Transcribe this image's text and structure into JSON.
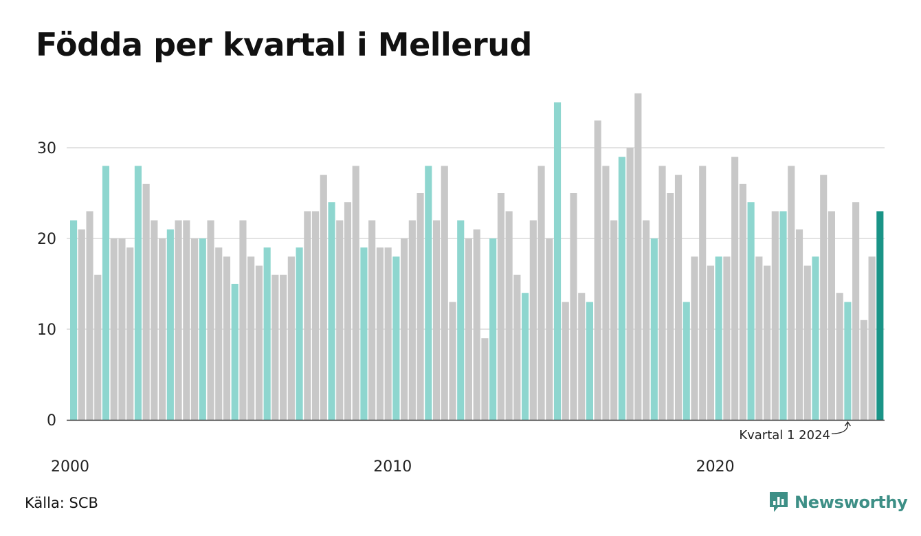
{
  "title": "Födda per kvartal i Mellerud",
  "source": "Källa: SCB",
  "brand": {
    "name": "Newsworthy",
    "color": "#3d8f86"
  },
  "colors": {
    "q1": "#8ed6cf",
    "other": "#c8c8c8",
    "latest": "#1a9487",
    "grid": "#e3e3e3",
    "axis": "#333333"
  },
  "chart_data": {
    "type": "bar",
    "title": "Födda per kvartal i Mellerud",
    "xlabel": "",
    "ylabel": "",
    "ylim": [
      0,
      36
    ],
    "yticks": [
      0,
      10,
      20,
      30
    ],
    "xticks": [
      2000,
      2010,
      2020
    ],
    "grid": true,
    "start": "2000 Q1",
    "series": [
      {
        "values": [
          22,
          21,
          23,
          16,
          28,
          20,
          20,
          19,
          28,
          26,
          22,
          20,
          21,
          22,
          22,
          20,
          20,
          22,
          19,
          18,
          15,
          22,
          18,
          17,
          19,
          16,
          16,
          18,
          19,
          23,
          23,
          27,
          24,
          22,
          24,
          28,
          19,
          22,
          19,
          19,
          18,
          20,
          22,
          25,
          28,
          22,
          28,
          13,
          22,
          20,
          21,
          9,
          20,
          25,
          23,
          16,
          14,
          22,
          28,
          20,
          35,
          13,
          25,
          14,
          13,
          33,
          28,
          22,
          29,
          30,
          36,
          22,
          20,
          28,
          25,
          27,
          13,
          18,
          28,
          17,
          18,
          18,
          29,
          26,
          24,
          18,
          17,
          23,
          23,
          28,
          21,
          17,
          18,
          27,
          23,
          14,
          13,
          24,
          11,
          18,
          23
        ]
      }
    ],
    "annotation": {
      "text": "Kvartal 1 2024",
      "target": "2024 Q1"
    }
  }
}
